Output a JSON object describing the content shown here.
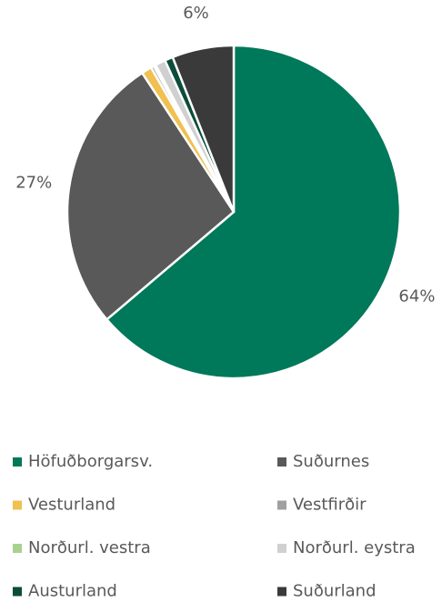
{
  "chart_data": {
    "type": "pie",
    "categories": [
      "Höfuðborgarsv.",
      "Suðurnes",
      "Vesturland",
      "Vestfirðir",
      "Norðurl. vestra",
      "Norðurl. eystra",
      "Austurland",
      "Suðurland"
    ],
    "values": [
      64,
      27,
      1,
      0.3,
      0.2,
      1,
      0.8,
      6
    ],
    "value_labels": [
      "64%",
      "27%",
      null,
      null,
      null,
      null,
      null,
      "6%"
    ],
    "colors": [
      "#00785a",
      "#595959",
      "#f0c050",
      "#a0a0a0",
      "#a9d18e",
      "#d0d0d0",
      "#0b4d3a",
      "#3a3a3a"
    ],
    "legend": "bottom"
  }
}
